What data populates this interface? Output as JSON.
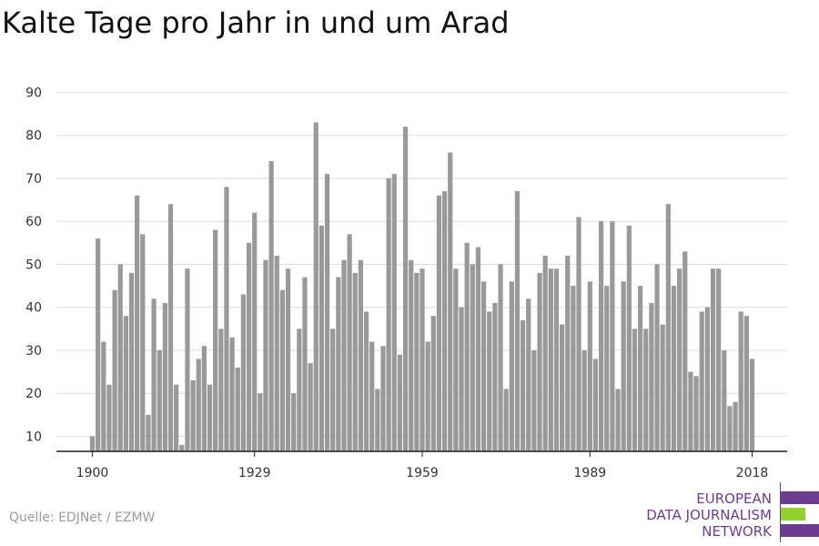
{
  "title": "Kalte Tage pro Jahr in und um Arad",
  "source": "Quelle: EDJNet / EZMW",
  "logo": {
    "line1": "EUROPEAN",
    "line2": "DATA JOURNALISM",
    "line3": "NETWORK",
    "colors": {
      "purple": "#6d3c92",
      "green": "#8fd22e"
    }
  },
  "colors": {
    "bar": "#999999",
    "grid": "#dddddd",
    "axis": "#222222"
  },
  "chart_data": {
    "type": "bar",
    "title": "Kalte Tage pro Jahr in und um Arad",
    "xlabel": "",
    "ylabel": "",
    "x_start": 1900,
    "x_end": 2018,
    "xticks": [
      1900,
      1929,
      1959,
      1989,
      2018
    ],
    "yticks": [
      10,
      20,
      30,
      40,
      50,
      60,
      70,
      80,
      90
    ],
    "ylim": [
      6.5,
      92
    ],
    "grid": true,
    "values": [
      10,
      56,
      32,
      22,
      44,
      50,
      38,
      48,
      66,
      57,
      15,
      42,
      30,
      41,
      64,
      22,
      8,
      49,
      23,
      28,
      31,
      22,
      58,
      35,
      68,
      33,
      26,
      43,
      55,
      62,
      20,
      51,
      74,
      52,
      44,
      49,
      20,
      35,
      47,
      27,
      83,
      59,
      71,
      35,
      47,
      51,
      57,
      48,
      51,
      39,
      32,
      21,
      31,
      70,
      71,
      29,
      82,
      51,
      48,
      49,
      32,
      38,
      66,
      67,
      76,
      49,
      40,
      55,
      50,
      54,
      46,
      39,
      41,
      50,
      21,
      46,
      67,
      37,
      42,
      30,
      48,
      52,
      49,
      49,
      36,
      52,
      45,
      61,
      30,
      46,
      28,
      60,
      45,
      60,
      21,
      46,
      59,
      35,
      45,
      35,
      41,
      50,
      36,
      64,
      45,
      49,
      53,
      25,
      24,
      39,
      40,
      49,
      49,
      30,
      17,
      18,
      39,
      38,
      28
    ]
  }
}
